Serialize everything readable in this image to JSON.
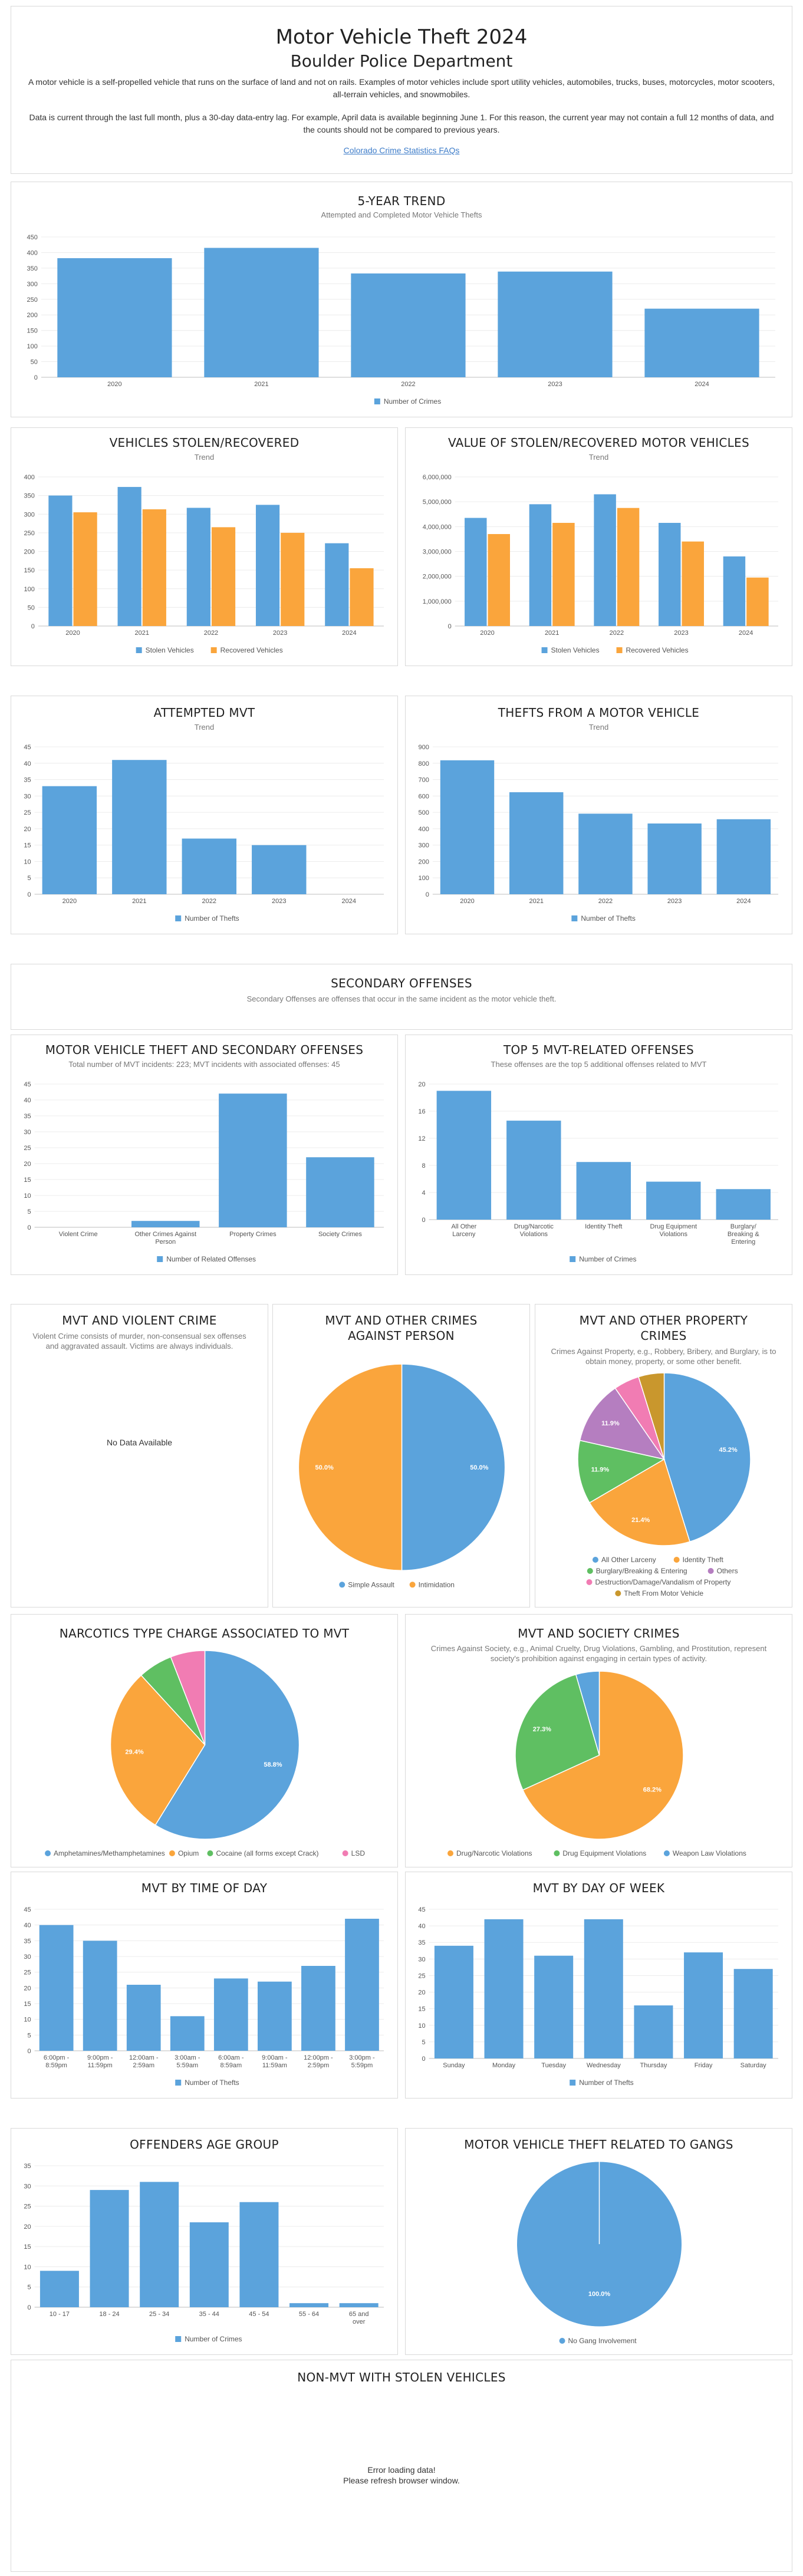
{
  "header": {
    "title": "Motor Vehicle Theft 2024",
    "subtitle": "Boulder Police Department",
    "description": "A motor vehicle is a self-propelled vehicle that runs on the surface of land and not on rails. Examples of motor vehicles include sport utility vehicles, automobiles, trucks, buses, motorcycles, motor scooters, all-terrain vehicles, and snowmobiles.",
    "note": "Data is current through the last full month, plus a 30-day data-entry lag. For example, April data is available beginning June 1. For this reason, the current year may not contain a full 12 months of data, and the counts should not be compared to previous years.",
    "link_text": "Colorado Crime Statistics FAQs"
  },
  "colors": {
    "blue": "#5ba3dc",
    "orange": "#faa53c",
    "green": "#5fbf62",
    "purple": "#b57ec0",
    "pink": "#f17cb3",
    "gold": "#c9972d"
  },
  "sections": {
    "trend": {
      "title": "5-YEAR TREND",
      "subtitle": "Attempted and Completed Motor Vehicle Thefts"
    },
    "stolen": {
      "title": "VEHICLES STOLEN/RECOVERED",
      "subtitle": "Trend"
    },
    "value": {
      "title": "VALUE OF STOLEN/RECOVERED MOTOR VEHICLES",
      "subtitle": "Trend"
    },
    "attempted": {
      "title": "ATTEMPTED MVT",
      "subtitle": "Trend"
    },
    "from_vehicle": {
      "title": "THEFTS FROM A MOTOR VEHICLE",
      "subtitle": "Trend"
    },
    "secondary": {
      "title": "SECONDARY OFFENSES",
      "subtitle": "Secondary Offenses are offenses that occur in the same incident as the motor vehicle theft."
    },
    "mvt_secondary": {
      "title": "MOTOR VEHICLE THEFT AND SECONDARY OFFENSES",
      "subtitle": "Total number of MVT incidents: 223; MVT incidents with associated offenses: 45"
    },
    "top5": {
      "title": "TOP 5 MVT-RELATED OFFENSES",
      "subtitle": "These offenses are the top 5 additional offenses related to MVT"
    },
    "violent": {
      "title": "MVT AND VIOLENT CRIME",
      "subtitle": "Violent Crime consists of murder, non-consensual sex offenses and aggravated assault. Victims are always individuals.",
      "message": "No Data Available"
    },
    "person": {
      "title_line1": "MVT AND OTHER CRIMES",
      "title_line2": "AGAINST PERSON"
    },
    "property": {
      "title_line1": "MVT AND OTHER PROPERTY",
      "title_line2": "CRIMES",
      "subtitle": "Crimes Against Property, e.g., Robbery, Bribery, and Burglary, is to obtain money, property, or some other benefit."
    },
    "narcotics": {
      "title": "NARCOTICS TYPE CHARGE ASSOCIATED TO MVT"
    },
    "society": {
      "title": "MVT AND SOCIETY CRIMES",
      "subtitle": "Crimes Against Society, e.g., Animal Cruelty, Drug Violations, Gambling, and Prostitution, represent society's prohibition against engaging in certain types of activity."
    },
    "time_of_day": {
      "title": "MVT BY TIME OF DAY"
    },
    "day_of_week": {
      "title": "MVT BY DAY OF WEEK"
    },
    "age_group": {
      "title": "OFFENDERS AGE GROUP"
    },
    "gangs": {
      "title": "MOTOR VEHICLE THEFT RELATED TO GANGS"
    },
    "non_mvt": {
      "title": "NON-MVT WITH STOLEN VEHICLES",
      "message_line1": "Error loading data!",
      "message_line2": "Please refresh browser window."
    }
  },
  "chart_data": [
    {
      "id": "trend",
      "type": "bar",
      "categories": [
        "2020",
        "2021",
        "2022",
        "2023",
        "2024"
      ],
      "series": [
        {
          "name": "Number of Crimes",
          "values": [
            382,
            415,
            333,
            339,
            220
          ]
        }
      ],
      "ylim": [
        0,
        450
      ],
      "yticks": [
        0,
        50,
        100,
        150,
        200,
        250,
        300,
        350,
        400,
        450
      ],
      "legend": "bottom"
    },
    {
      "id": "stolen",
      "type": "bar",
      "categories": [
        "2020",
        "2021",
        "2022",
        "2023",
        "2024"
      ],
      "series": [
        {
          "name": "Stolen Vehicles",
          "values": [
            350,
            373,
            317,
            325,
            222
          ]
        },
        {
          "name": "Recovered Vehicles",
          "values": [
            305,
            313,
            265,
            250,
            155
          ]
        }
      ],
      "ylim": [
        0,
        400
      ],
      "yticks": [
        0,
        50,
        100,
        150,
        200,
        250,
        300,
        350,
        400
      ],
      "legend": "bottom"
    },
    {
      "id": "value",
      "type": "bar",
      "categories": [
        "2020",
        "2021",
        "2022",
        "2023",
        "2024"
      ],
      "series": [
        {
          "name": "Stolen Vehicles",
          "values": [
            4350000,
            4900000,
            5300000,
            4150000,
            2800000
          ]
        },
        {
          "name": "Recovered Vehicles",
          "values": [
            3700000,
            4150000,
            4750000,
            3400000,
            1950000
          ]
        }
      ],
      "ylim": [
        0,
        6000000
      ],
      "yticks": [
        0,
        1000000,
        2000000,
        3000000,
        4000000,
        5000000,
        6000000
      ],
      "ytick_labels": [
        "0",
        "1,000,000",
        "2,000,000",
        "3,000,000",
        "4,000,000",
        "5,000,000",
        "6,000,000"
      ],
      "legend": "bottom"
    },
    {
      "id": "attempted",
      "type": "bar",
      "categories": [
        "2020",
        "2021",
        "2022",
        "2023",
        "2024"
      ],
      "series": [
        {
          "name": "Number of Thefts",
          "values": [
            33,
            41,
            17,
            15,
            0
          ]
        }
      ],
      "ylim": [
        0,
        45
      ],
      "yticks": [
        0,
        5,
        10,
        15,
        20,
        25,
        30,
        35,
        40,
        45
      ],
      "legend": "bottom"
    },
    {
      "id": "from_vehicle",
      "type": "bar",
      "categories": [
        "2020",
        "2021",
        "2022",
        "2023",
        "2024"
      ],
      "series": [
        {
          "name": "Number of Thefts",
          "values": [
            818,
            623,
            492,
            432,
            458
          ]
        }
      ],
      "ylim": [
        0,
        900
      ],
      "yticks": [
        0,
        100,
        200,
        300,
        400,
        500,
        600,
        700,
        800,
        900
      ],
      "legend": "bottom"
    },
    {
      "id": "mvt_secondary",
      "type": "bar",
      "categories": [
        [
          "Violent Crime"
        ],
        [
          "Other Crimes Against",
          "Person"
        ],
        [
          "Property Crimes"
        ],
        [
          "Society Crimes"
        ]
      ],
      "series": [
        {
          "name": "Number of Related Offenses",
          "values": [
            0,
            2,
            42,
            22
          ]
        }
      ],
      "ylim": [
        0,
        45
      ],
      "yticks": [
        0,
        5,
        10,
        15,
        20,
        25,
        30,
        35,
        40,
        45
      ],
      "legend": "bottom"
    },
    {
      "id": "top5",
      "type": "bar",
      "categories": [
        [
          "All Other",
          "Larceny"
        ],
        [
          "Drug/Narcotic",
          "Violations"
        ],
        [
          "Identity Theft"
        ],
        [
          "Drug Equipment",
          "Violations"
        ],
        [
          "Burglary/",
          "Breaking &",
          "Entering"
        ]
      ],
      "series": [
        {
          "name": "Number of Crimes",
          "values": [
            19,
            14.6,
            8.5,
            5.6,
            4.5
          ]
        }
      ],
      "ylim": [
        0,
        20
      ],
      "yticks": [
        0,
        4,
        8,
        12,
        16,
        20
      ],
      "legend": "bottom"
    },
    {
      "id": "person",
      "type": "pie",
      "labels": [
        "Simple Assault",
        "Intimidation"
      ],
      "values": [
        50.0,
        50.0
      ],
      "value_labels": [
        "50.0%",
        "50.0%"
      ],
      "colors": [
        "#5ba3dc",
        "#faa53c"
      ],
      "legend": "bottom"
    },
    {
      "id": "property",
      "type": "pie",
      "labels": [
        "All Other Larceny",
        "Identity Theft",
        "Burglary/Breaking & Entering",
        "Others",
        "Destruction/Damage/Vandalism of Property",
        "Theft From Motor Vehicle"
      ],
      "values": [
        45.2,
        21.4,
        11.9,
        11.9,
        4.8,
        4.8
      ],
      "value_labels": [
        "45.2%",
        "21.4%",
        "11.9%",
        "11.9%",
        "",
        ""
      ],
      "colors": [
        "#5ba3dc",
        "#faa53c",
        "#5fbf62",
        "#b57ec0",
        "#f17cb3",
        "#c9972d"
      ],
      "legend": "bottom"
    },
    {
      "id": "narcotics",
      "type": "pie",
      "labels": [
        "Amphetamines/Methamphetamines",
        "Opium",
        "Cocaine (all forms except Crack)",
        "LSD"
      ],
      "values": [
        58.8,
        29.4,
        5.9,
        5.9
      ],
      "value_labels": [
        "58.8%",
        "29.4%",
        "",
        ""
      ],
      "colors": [
        "#5ba3dc",
        "#faa53c",
        "#5fbf62",
        "#f17cb3"
      ],
      "legend": "bottom"
    },
    {
      "id": "society",
      "type": "pie",
      "labels": [
        "Drug/Narcotic Violations",
        "Drug Equipment Violations",
        "Weapon Law Violations"
      ],
      "values": [
        68.2,
        27.3,
        4.5
      ],
      "value_labels": [
        "68.2%",
        "27.3%",
        ""
      ],
      "colors": [
        "#faa53c",
        "#5fbf62",
        "#5ba3dc"
      ],
      "legend": "bottom"
    },
    {
      "id": "time_of_day",
      "type": "bar",
      "categories": [
        [
          "6:00pm -",
          "8:59pm"
        ],
        [
          "9:00pm -",
          "11:59pm"
        ],
        [
          "12:00am -",
          "2:59am"
        ],
        [
          "3:00am -",
          "5:59am"
        ],
        [
          "6:00am -",
          "8:59am"
        ],
        [
          "9:00am -",
          "11:59am"
        ],
        [
          "12:00pm -",
          "2:59pm"
        ],
        [
          "3:00pm -",
          "5:59pm"
        ]
      ],
      "series": [
        {
          "name": "Number of Thefts",
          "values": [
            40,
            35,
            21,
            11,
            23,
            22,
            27,
            42
          ]
        }
      ],
      "ylim": [
        0,
        45
      ],
      "yticks": [
        0,
        5,
        10,
        15,
        20,
        25,
        30,
        35,
        40,
        45
      ],
      "legend": "bottom"
    },
    {
      "id": "day_of_week",
      "type": "bar",
      "categories": [
        "Sunday",
        "Monday",
        "Tuesday",
        "Wednesday",
        "Thursday",
        "Friday",
        "Saturday"
      ],
      "series": [
        {
          "name": "Number of Thefts",
          "values": [
            34,
            42,
            31,
            42,
            16,
            32,
            27
          ]
        }
      ],
      "ylim": [
        0,
        45
      ],
      "yticks": [
        0,
        5,
        10,
        15,
        20,
        25,
        30,
        35,
        40,
        45
      ],
      "legend": "bottom"
    },
    {
      "id": "age_group",
      "type": "bar",
      "categories": [
        [
          "10 - 17"
        ],
        [
          "18 - 24"
        ],
        [
          "25 - 34"
        ],
        [
          "35 - 44"
        ],
        [
          "45 - 54"
        ],
        [
          "55 - 64"
        ],
        [
          "65 and",
          "over"
        ]
      ],
      "series": [
        {
          "name": "Number of Crimes",
          "values": [
            9,
            29,
            31,
            21,
            26,
            1,
            1
          ]
        }
      ],
      "ylim": [
        0,
        35
      ],
      "yticks": [
        0,
        5,
        10,
        15,
        20,
        25,
        30,
        35
      ],
      "legend": "bottom"
    },
    {
      "id": "gangs",
      "type": "pie",
      "labels": [
        "No Gang Involvement"
      ],
      "values": [
        100.0
      ],
      "value_labels": [
        "100.0%"
      ],
      "colors": [
        "#5ba3dc"
      ],
      "legend": "bottom"
    }
  ]
}
